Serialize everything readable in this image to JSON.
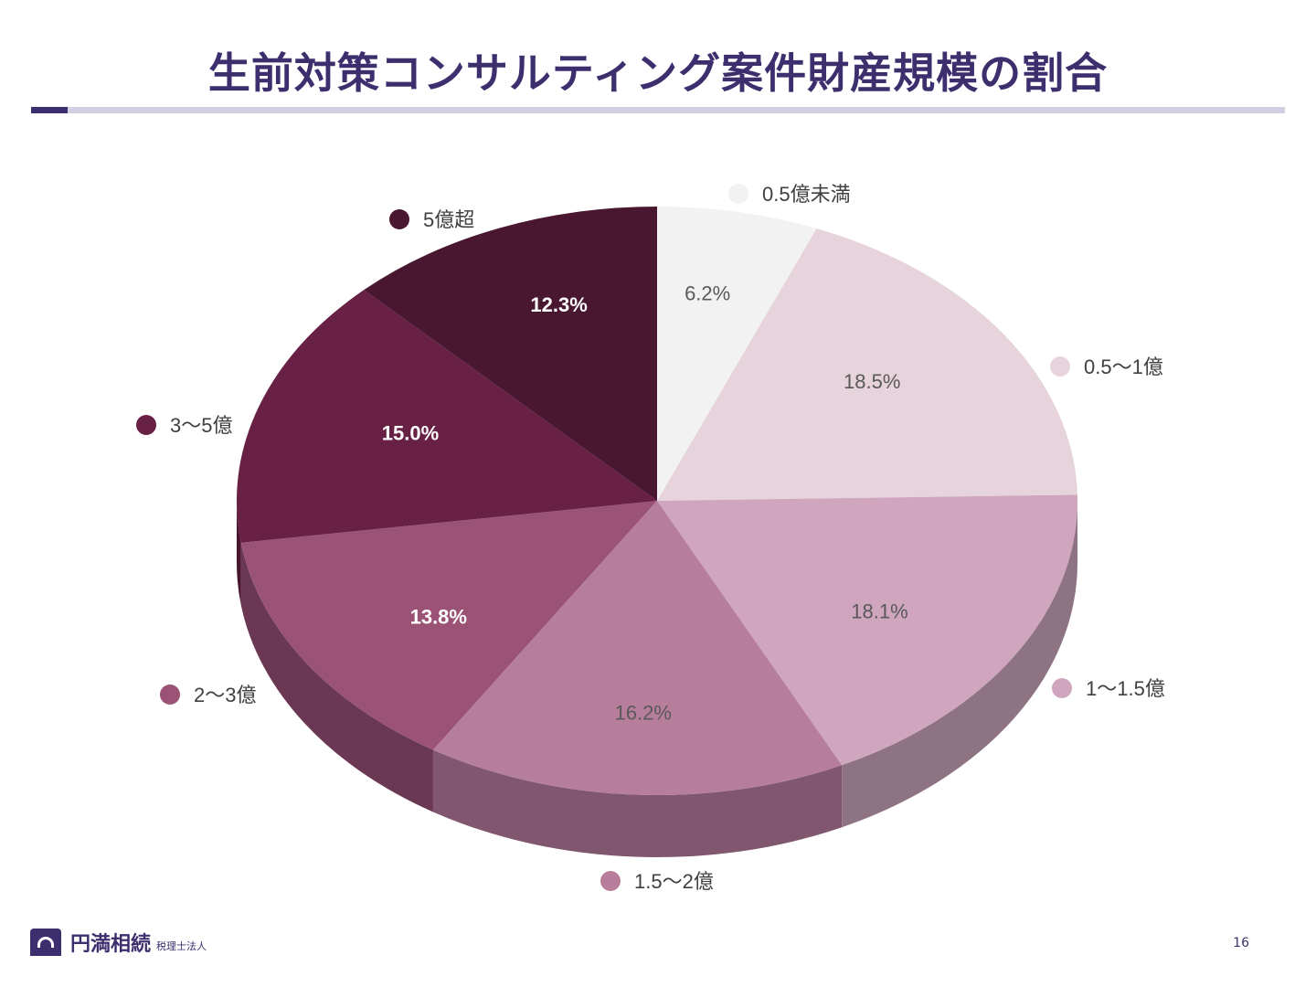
{
  "title": "生前対策コンサルティング案件財産規模の割合",
  "footer": {
    "brand": "円満相続",
    "brand_sub": "税理士法人",
    "page_number": "16"
  },
  "chart_data": {
    "type": "pie",
    "title": "生前対策コンサルティング案件財産規模の割合",
    "slices": [
      {
        "label": "0.5億未満",
        "value": 6.2,
        "value_label": "6.2%",
        "color": "#f2f2f2",
        "side_color": "#b5b5b5",
        "text_color": "#595959"
      },
      {
        "label": "0.5～1億",
        "value": 18.5,
        "value_label": "18.5%",
        "color": "#e6d3dc",
        "side_color": "#a795a0",
        "text_color": "#595959"
      },
      {
        "label": "1～1.5億",
        "value": 18.1,
        "value_label": "18.1%",
        "color": "#cfa6bd",
        "side_color": "#8e7383",
        "text_color": "#595959"
      },
      {
        "label": "1.5～2億",
        "value": 16.2,
        "value_label": "16.2%",
        "color": "#b77e9c",
        "side_color": "#80576e",
        "text_color": "#595959"
      },
      {
        "label": "2～3億",
        "value": 13.8,
        "value_label": "13.8%",
        "color": "#9a5375",
        "side_color": "#6b3853",
        "text_color": "#ffffff"
      },
      {
        "label": "3～5億",
        "value": 15.0,
        "value_label": "15.0%",
        "color": "#682145",
        "side_color": "#48152f",
        "text_color": "#ffffff"
      },
      {
        "label": "5億超",
        "value": 12.3,
        "value_label": "12.3%",
        "color": "#4a1730",
        "side_color": "#320e20",
        "text_color": "#ffffff"
      }
    ],
    "legend_placement": "around the pie"
  }
}
